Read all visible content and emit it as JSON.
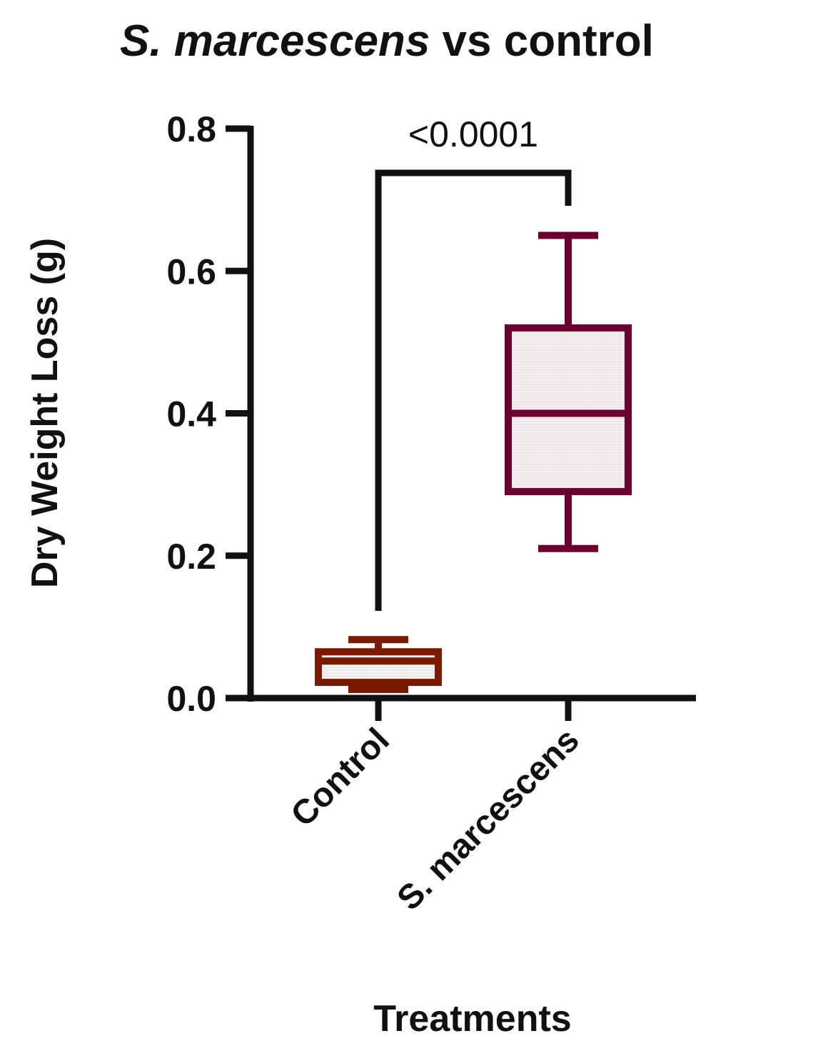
{
  "chart_data": {
    "type": "box",
    "title_italic": "S. marcescens",
    "title_rest": " vs control",
    "xlabel": "Treatments",
    "ylabel": "Dry Weight Loss (g)",
    "ylim": [
      0,
      0.8
    ],
    "yticks": [
      "0.0",
      "0.2",
      "0.4",
      "0.6",
      "0.8"
    ],
    "yticks_values": [
      0,
      0.2,
      0.4,
      0.6,
      0.8
    ],
    "grid": false,
    "categories": [
      "Control",
      "S. marcescens"
    ],
    "series": [
      {
        "min": 0.012,
        "q1": 0.022,
        "median": 0.052,
        "q3": 0.065,
        "max": 0.082,
        "color": "#7a1a00",
        "fill": "#f2f2f2"
      },
      {
        "min": 0.21,
        "q1": 0.29,
        "median": 0.4,
        "q3": 0.52,
        "max": 0.65,
        "color": "#6a0030",
        "fill": "#f7eef1"
      }
    ],
    "significance": {
      "label": "<0.0001",
      "from": 0,
      "to": 1
    }
  }
}
